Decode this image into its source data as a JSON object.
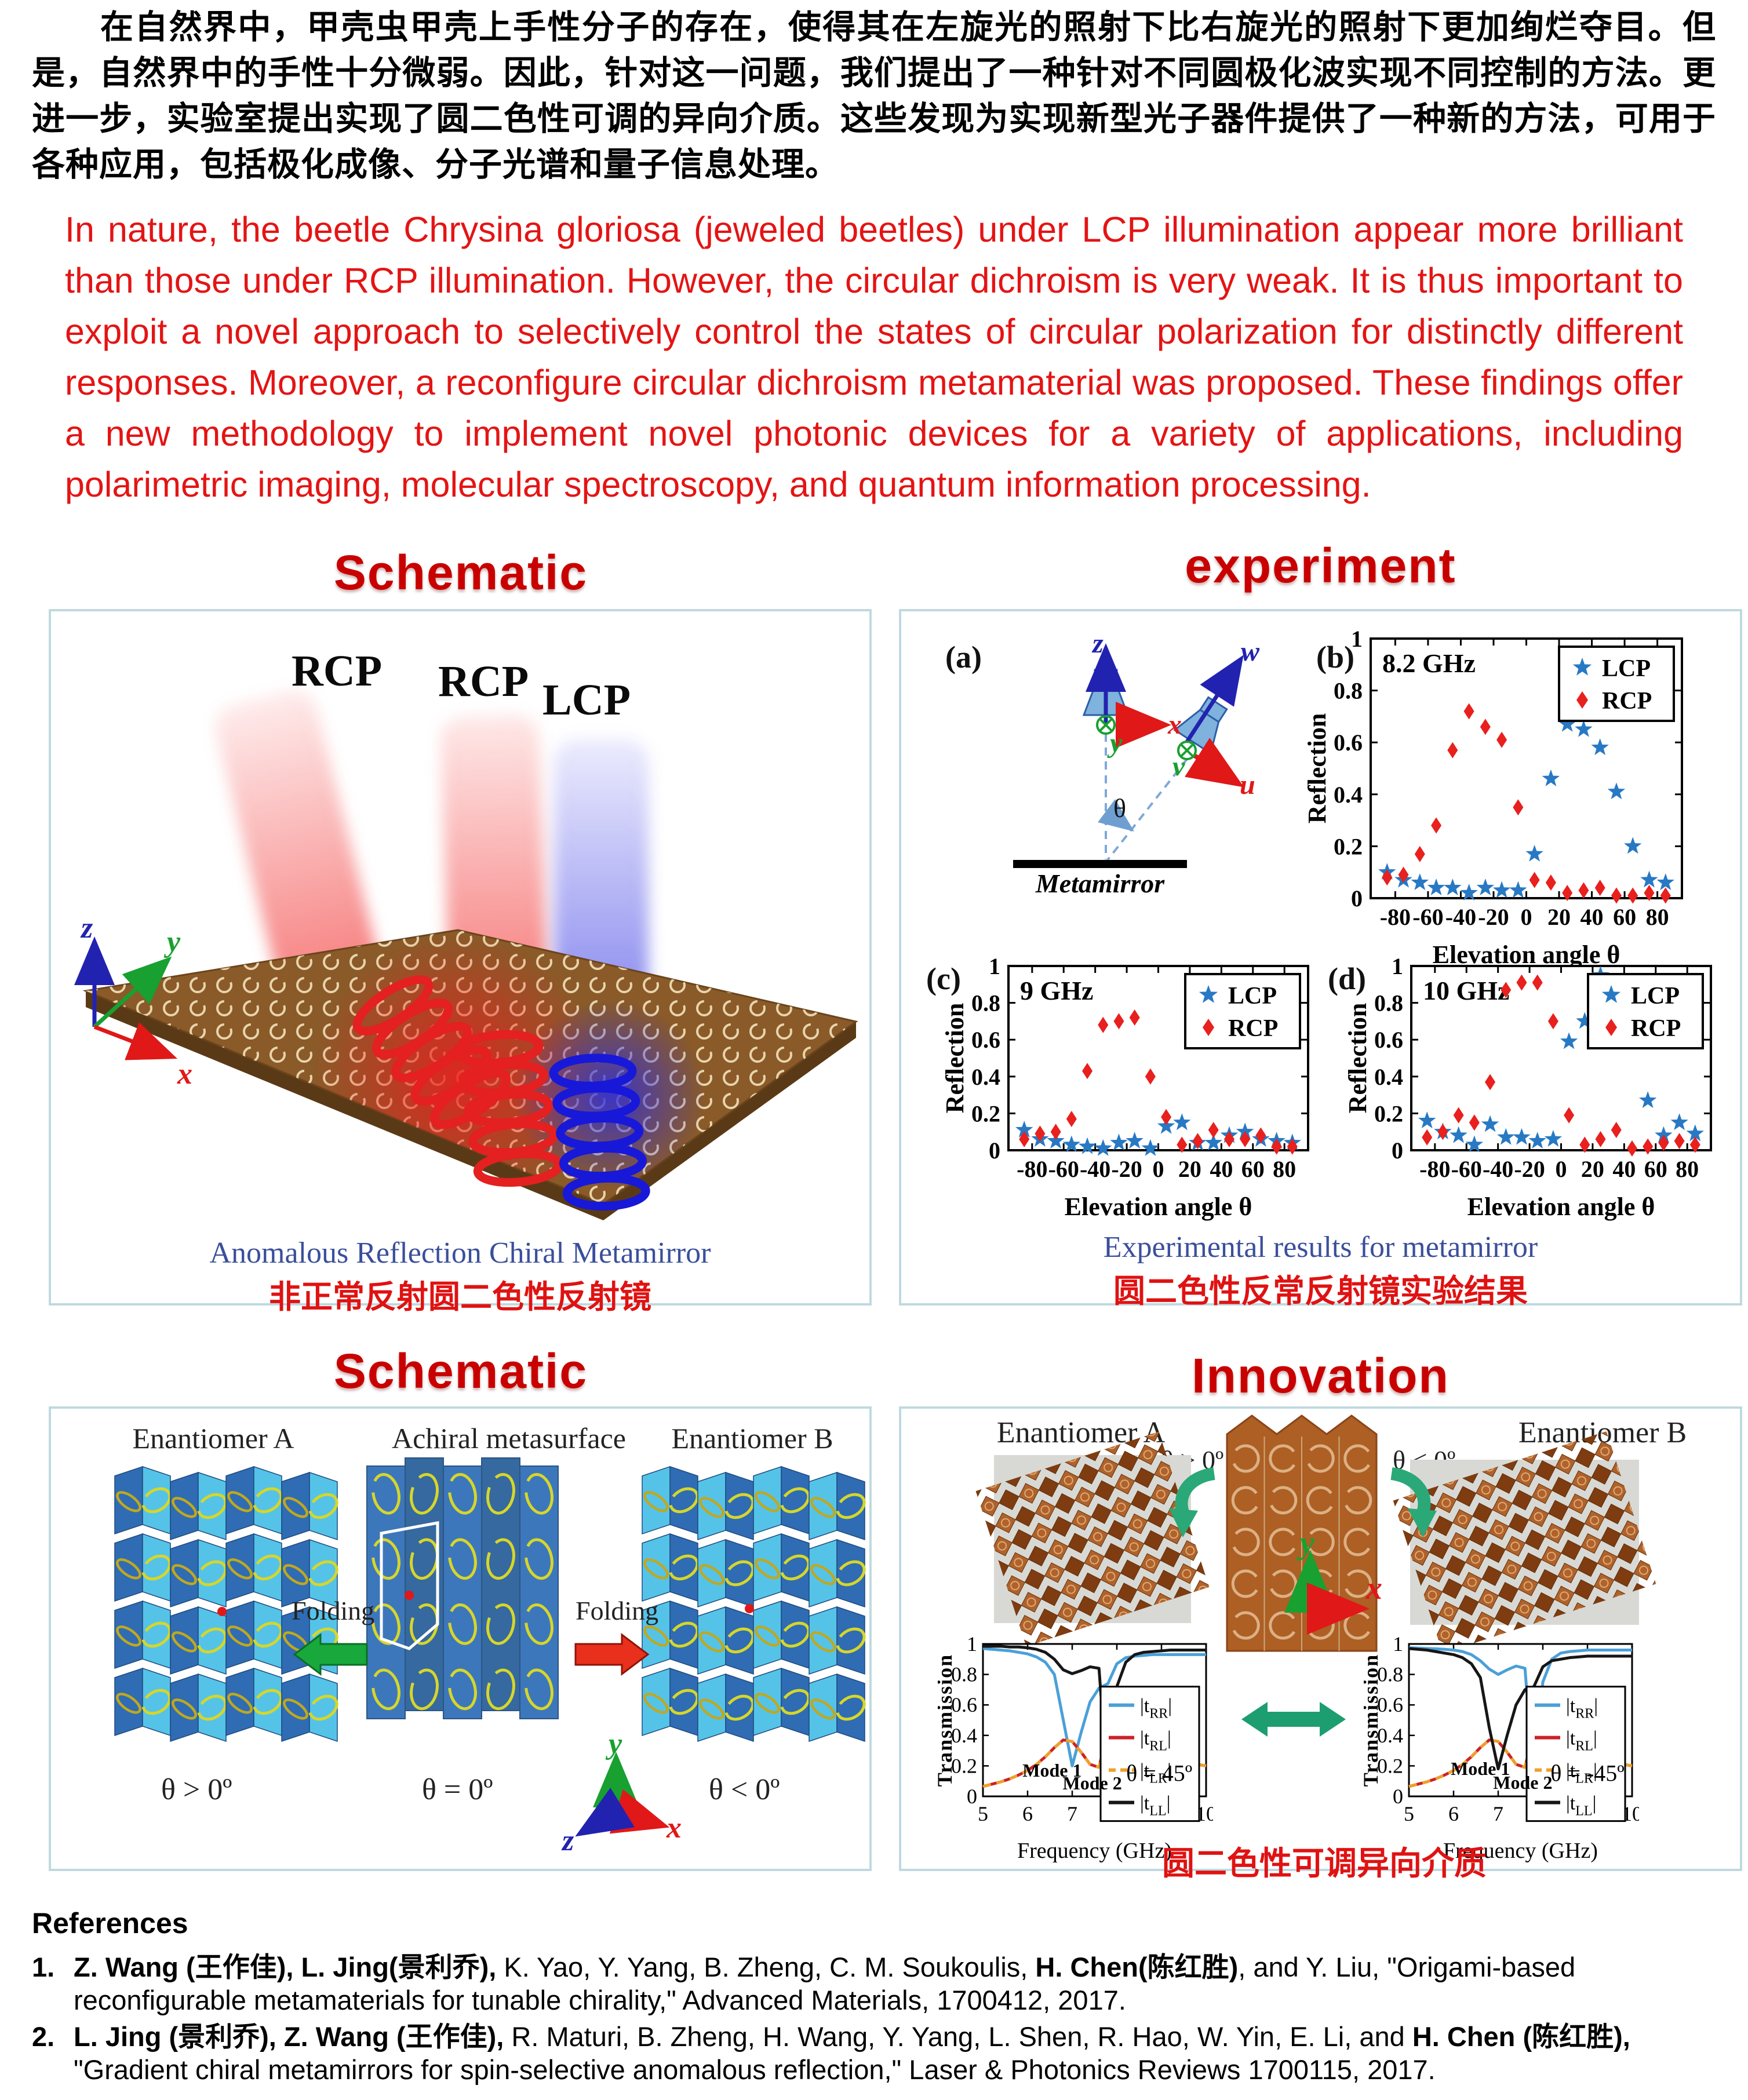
{
  "intro": {
    "zh": "在自然界中，甲壳虫甲壳上手性分子的存在，使得其在左旋光的照射下比右旋光的照射下更加绚烂夺目。但是，自然界中的手性十分微弱。因此，针对这一问题，我们提出了一种针对不同圆极化波实现不同控制的方法。更进一步，实验室提出实现了圆二色性可调的异向介质。这些发现为实现新型光子器件提供了一种新的方法，可用于各种应用，包括极化成像、分子光谱和量子信息处理。",
    "en": "In nature, the beetle Chrysina gloriosa (jeweled beetles) under LCP illumination appear more brilliant than those under RCP illumination. However, the circular dichroism is very weak. It is thus important to exploit a novel approach to selectively control the states of circular polarization for distinctly different responses. Moreover, a reconfigure circular dichroism metamaterial was proposed. These findings offer a new methodology to implement novel photonic devices for a variety of applications, including polarimetric imaging, molecular spectroscopy, and quantum information processing."
  },
  "headings": {
    "schematic1": "Schematic",
    "experiment": "experiment",
    "schematic2": "Schematic",
    "innovation": "Innovation"
  },
  "schematic1": {
    "beam_labels": [
      "RCP",
      "RCP",
      "LCP"
    ],
    "axes": {
      "x": "x",
      "y": "y",
      "z": "z"
    },
    "caption_en": "Anomalous Reflection Chiral Metamirror",
    "caption_zh": "非正常反射圆二色性反射镜"
  },
  "experiment": {
    "tag_a": "(a)",
    "tag_b": "(b)",
    "tag_c": "(c)",
    "tag_d": "(d)",
    "axis_z": "z",
    "axis_x": "x",
    "axis_y": "y",
    "axis_u": "u",
    "axis_v": "v",
    "axis_w": "w",
    "theta": "θ",
    "metamirror": "Metamirror",
    "caption_en": "Experimental results for metamirror",
    "caption_zh": "圆二色性反常反射镜实验结果"
  },
  "schematic2": {
    "labels": [
      "Enantiomer A",
      "Achiral metasurface",
      "Enantiomer B"
    ],
    "folding_left": "Folding",
    "folding_right": "Folding",
    "theta_labels": [
      "θ > 0º",
      "θ = 0º",
      "θ < 0º"
    ],
    "axes": {
      "x": "x",
      "y": "y",
      "z": "z"
    }
  },
  "innovation": {
    "label_a": "Enantiomer A",
    "label_b": "Enantiomer B",
    "theta_a": "θ > 0º",
    "theta_b": "θ < 0º",
    "axes": {
      "x": "x",
      "y": "y"
    },
    "caption_zh": "圆二色性可调异向介质"
  },
  "references": {
    "heading": "References",
    "items": [
      {
        "number": "1.",
        "segments": [
          {
            "t": "Z. Wang (王作佳), L. Jing(景利乔),",
            "b": true
          },
          {
            "t": " K. Yao, Y. Yang, B. Zheng, C. M. Soukoulis, ",
            "b": false
          },
          {
            "t": "H. Chen(陈红胜)",
            "b": true
          },
          {
            "t": ", and Y. Liu, \"Origami-based reconfigurable metamaterials for tunable chirality,\" Advanced Materials, 1700412, 2017.",
            "b": false
          }
        ]
      },
      {
        "number": "2.",
        "segments": [
          {
            "t": "L. Jing (景利乔), Z. Wang (王作佳),",
            "b": true
          },
          {
            "t": " R. Maturi, B. Zheng, H. Wang, Y. Yang, L. Shen, R. Hao, W. Yin, E. Li, and ",
            "b": false
          },
          {
            "t": "H. Chen (陈红胜),",
            "b": true
          },
          {
            "t": " \"Gradient chiral metamirrors for spin-selective anomalous reflection,\" Laser & Photonics Reviews 1700115, 2017.",
            "b": false
          }
        ]
      }
    ]
  },
  "colors": {
    "heading_red": "#c80000",
    "intro_red": "#e41414",
    "caption_blue": "#3a4f9b",
    "caption_red": "#e01212",
    "lcp_blue": "#2779c4",
    "rcp_red": "#e8201e",
    "board_brown": "#8a5a28",
    "origami_dark_blue": "#2f6cb3",
    "origami_light_blue": "#55c3e8",
    "ring_yellow": "#d6d62a",
    "photo_orange": "#b0622a",
    "arrow_green": "#18a83c",
    "arrow_red": "#e8301c",
    "arrow_teal": "#1d9e70"
  },
  "chart_data": [
    {
      "id": "reflection_8_2",
      "type": "scatter",
      "title": "8.2 GHz",
      "xlabel": "Elevation angle θ",
      "ylabel": "Reflection",
      "xlim": [
        -95,
        95
      ],
      "ylim": [
        0,
        1
      ],
      "xticks": [
        -80,
        -60,
        -40,
        -20,
        0,
        20,
        40,
        60,
        80
      ],
      "yticks": [
        0,
        0.2,
        0.4,
        0.6,
        0.8,
        1
      ],
      "legend_pos": "tr",
      "grid": false,
      "x": [
        -85,
        -75,
        -65,
        -55,
        -45,
        -35,
        -25,
        -15,
        -5,
        5,
        15,
        25,
        35,
        45,
        55,
        65,
        75,
        85
      ],
      "series": [
        {
          "name": "LCP",
          "marker": "star",
          "color": "#2779c4",
          "values": [
            0.1,
            0.07,
            0.06,
            0.04,
            0.04,
            0.02,
            0.04,
            0.03,
            0.03,
            0.17,
            0.46,
            0.67,
            0.65,
            0.58,
            0.41,
            0.2,
            0.07,
            0.06
          ]
        },
        {
          "name": "RCP",
          "marker": "diamond",
          "color": "#e8201e",
          "values": [
            0.08,
            0.09,
            0.17,
            0.28,
            0.57,
            0.72,
            0.66,
            0.61,
            0.35,
            0.07,
            0.06,
            0.02,
            0.03,
            0.04,
            0.01,
            0.01,
            0.02,
            0.01
          ]
        }
      ]
    },
    {
      "id": "reflection_9",
      "type": "scatter",
      "title": "9 GHz",
      "xlabel": "Elevation angle θ",
      "ylabel": "Reflection",
      "xlim": [
        -95,
        95
      ],
      "ylim": [
        0,
        1
      ],
      "xticks": [
        -80,
        -60,
        -40,
        -20,
        0,
        20,
        40,
        60,
        80
      ],
      "yticks": [
        0,
        0.2,
        0.4,
        0.6,
        0.8,
        1
      ],
      "legend_pos": "tr",
      "grid": false,
      "x": [
        -85,
        -75,
        -65,
        -55,
        -45,
        -35,
        -25,
        -15,
        -5,
        5,
        15,
        25,
        35,
        45,
        55,
        65,
        75,
        85
      ],
      "series": [
        {
          "name": "LCP",
          "marker": "star",
          "color": "#2779c4",
          "values": [
            0.11,
            0.06,
            0.05,
            0.03,
            0.02,
            0.01,
            0.04,
            0.05,
            0.01,
            0.13,
            0.15,
            0.04,
            0.04,
            0.08,
            0.1,
            0.06,
            0.05,
            0.04
          ]
        },
        {
          "name": "RCP",
          "marker": "diamond",
          "color": "#e8201e",
          "values": [
            0.06,
            0.09,
            0.1,
            0.17,
            0.43,
            0.68,
            0.7,
            0.72,
            0.4,
            0.18,
            0.03,
            0.05,
            0.11,
            0.06,
            0.06,
            0.08,
            0.02,
            0.02
          ]
        }
      ]
    },
    {
      "id": "reflection_10",
      "type": "scatter",
      "title": "10 GHz",
      "xlabel": "Elevation angle θ",
      "ylabel": "Reflection",
      "xlim": [
        -95,
        95
      ],
      "ylim": [
        0,
        1
      ],
      "xticks": [
        -80,
        -60,
        -40,
        -20,
        0,
        20,
        40,
        60,
        80
      ],
      "yticks": [
        0,
        0.2,
        0.4,
        0.6,
        0.8,
        1
      ],
      "legend_pos": "tr",
      "grid": false,
      "x": [
        -85,
        -75,
        -65,
        -55,
        -45,
        -35,
        -25,
        -15,
        -5,
        5,
        15,
        25,
        35,
        45,
        55,
        65,
        75,
        85
      ],
      "series": [
        {
          "name": "LCP",
          "marker": "star",
          "color": "#2779c4",
          "values": [
            0.16,
            0.1,
            0.08,
            0.03,
            0.14,
            0.07,
            0.07,
            0.05,
            0.06,
            0.59,
            0.7,
            0.95,
            0.88,
            0.59,
            0.27,
            0.08,
            0.15,
            0.09
          ]
        },
        {
          "name": "RCP",
          "marker": "diamond",
          "color": "#e8201e",
          "values": [
            0.07,
            0.1,
            0.19,
            0.15,
            0.37,
            0.87,
            0.91,
            0.91,
            0.7,
            0.19,
            0.03,
            0.06,
            0.11,
            0.01,
            0.02,
            0.04,
            0.05,
            0.03
          ]
        }
      ]
    },
    {
      "id": "transmission_pos45",
      "type": "line",
      "xlabel": "Frequency (GHz)",
      "ylabel": "Transmission",
      "xlim": [
        5,
        10
      ],
      "ylim": [
        0,
        1
      ],
      "xticks": [
        5,
        6,
        7,
        8,
        9,
        10
      ],
      "yticks": [
        0,
        0.2,
        0.4,
        0.6,
        0.8,
        1
      ],
      "grid": false,
      "x": [
        5,
        5.2,
        5.4,
        5.6,
        5.8,
        6,
        6.2,
        6.4,
        6.6,
        6.8,
        7,
        7.2,
        7.4,
        7.6,
        7.8,
        8,
        8.2,
        8.4,
        8.6,
        8.8,
        9,
        9.2,
        9.4,
        9.6,
        9.8,
        10
      ],
      "series": [
        {
          "name": "tRR",
          "sub": "RR",
          "color": "#4aa0d8",
          "values": [
            0.97,
            0.965,
            0.96,
            0.955,
            0.945,
            0.935,
            0.915,
            0.88,
            0.8,
            0.5,
            0.2,
            0.42,
            0.62,
            0.71,
            0.74,
            0.87,
            0.91,
            0.92,
            0.925,
            0.93,
            0.93,
            0.93,
            0.93,
            0.93,
            0.93,
            0.93
          ]
        },
        {
          "name": "tRL",
          "sub": "RL",
          "color": "#cc2227",
          "values": [
            0.065,
            0.08,
            0.095,
            0.115,
            0.14,
            0.17,
            0.21,
            0.26,
            0.32,
            0.37,
            0.36,
            0.29,
            0.21,
            0.19,
            0.43,
            0.4,
            0.36,
            0.32,
            0.29,
            0.27,
            0.255,
            0.24,
            0.23,
            0.22,
            0.21,
            0.2
          ]
        },
        {
          "name": "tLR",
          "sub": "LR",
          "color": "#efa02a",
          "dash": [
            14,
            10
          ],
          "values": [
            0.065,
            0.08,
            0.095,
            0.115,
            0.14,
            0.17,
            0.21,
            0.26,
            0.32,
            0.37,
            0.36,
            0.29,
            0.21,
            0.19,
            0.43,
            0.4,
            0.36,
            0.32,
            0.29,
            0.27,
            0.255,
            0.24,
            0.23,
            0.22,
            0.21,
            0.2
          ]
        },
        {
          "name": "tLL",
          "sub": "LL",
          "color": "#161616",
          "values": [
            0.985,
            0.985,
            0.985,
            0.98,
            0.98,
            0.975,
            0.965,
            0.945,
            0.9,
            0.83,
            0.805,
            0.825,
            0.85,
            0.84,
            0.06,
            0.72,
            0.88,
            0.93,
            0.945,
            0.95,
            0.955,
            0.96,
            0.96,
            0.96,
            0.96,
            0.96
          ]
        }
      ],
      "annotations": [
        {
          "t": "Mode 1",
          "x": 6.55,
          "y": 0.13
        },
        {
          "t": "Mode 2",
          "x": 7.45,
          "y": 0.045
        },
        {
          "t": "θ = 45º",
          "x": 8.95,
          "y": 0.1,
          "cls": "theta"
        }
      ]
    },
    {
      "id": "transmission_neg45",
      "type": "line",
      "xlabel": "Frequency (GHz)",
      "ylabel": "Transmission",
      "xlim": [
        5,
        10
      ],
      "ylim": [
        0,
        1
      ],
      "xticks": [
        5,
        6,
        7,
        8,
        9,
        10
      ],
      "yticks": [
        0,
        0.2,
        0.4,
        0.6,
        0.8,
        1
      ],
      "grid": false,
      "x": [
        5,
        5.2,
        5.4,
        5.6,
        5.8,
        6,
        6.2,
        6.4,
        6.6,
        6.8,
        7,
        7.2,
        7.4,
        7.6,
        7.8,
        8,
        8.2,
        8.4,
        8.6,
        8.8,
        9,
        9.2,
        9.4,
        9.6,
        9.8,
        10
      ],
      "series": [
        {
          "name": "tRR",
          "sub": "RR",
          "color": "#4aa0d8",
          "values": [
            0.975,
            0.973,
            0.97,
            0.968,
            0.965,
            0.96,
            0.95,
            0.93,
            0.89,
            0.835,
            0.8,
            0.83,
            0.855,
            0.84,
            0.09,
            0.75,
            0.9,
            0.94,
            0.95,
            0.955,
            0.96,
            0.96,
            0.96,
            0.96,
            0.96,
            0.96
          ]
        },
        {
          "name": "tRL",
          "sub": "RL",
          "color": "#cc2227",
          "values": [
            0.065,
            0.08,
            0.095,
            0.115,
            0.14,
            0.17,
            0.21,
            0.26,
            0.32,
            0.37,
            0.36,
            0.29,
            0.21,
            0.19,
            0.43,
            0.4,
            0.36,
            0.32,
            0.29,
            0.27,
            0.255,
            0.24,
            0.23,
            0.22,
            0.21,
            0.2
          ]
        },
        {
          "name": "tLR",
          "sub": "LR",
          "color": "#efa02a",
          "dash": [
            14,
            10
          ],
          "values": [
            0.065,
            0.08,
            0.095,
            0.115,
            0.14,
            0.17,
            0.21,
            0.26,
            0.32,
            0.37,
            0.36,
            0.29,
            0.21,
            0.19,
            0.43,
            0.4,
            0.36,
            0.32,
            0.29,
            0.27,
            0.255,
            0.24,
            0.23,
            0.22,
            0.21,
            0.2
          ]
        },
        {
          "name": "tLL",
          "sub": "LL",
          "color": "#161616",
          "values": [
            0.97,
            0.965,
            0.96,
            0.95,
            0.94,
            0.93,
            0.91,
            0.87,
            0.78,
            0.45,
            0.18,
            0.4,
            0.6,
            0.7,
            0.72,
            0.85,
            0.89,
            0.9,
            0.91,
            0.915,
            0.92,
            0.92,
            0.92,
            0.92,
            0.92,
            0.92
          ]
        }
      ],
      "annotations": [
        {
          "t": "Mode 1",
          "x": 6.6,
          "y": 0.14
        },
        {
          "t": "Mode 2",
          "x": 7.55,
          "y": 0.05
        },
        {
          "t": "θ = -45º",
          "x": 9.0,
          "y": 0.1,
          "cls": "theta"
        }
      ]
    }
  ]
}
